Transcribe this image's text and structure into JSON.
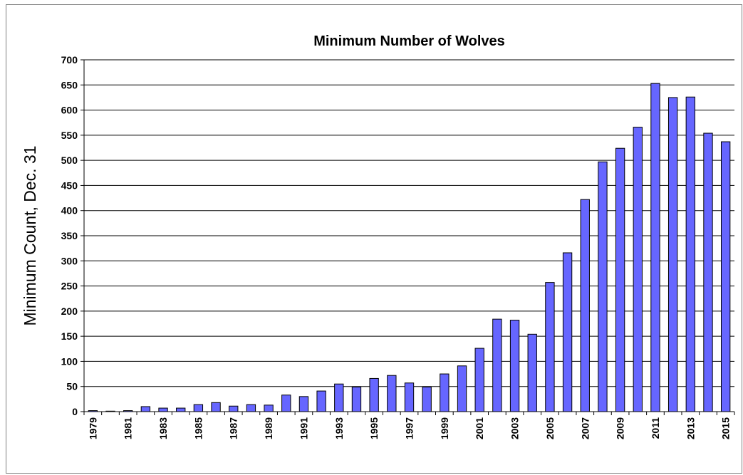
{
  "chart_data": {
    "type": "bar",
    "title": "Minimum Number of Wolves",
    "xlabel": "",
    "ylabel": "Minimum  Count, Dec.  31",
    "ylim": [
      0,
      700
    ],
    "ytick_step": 50,
    "yticks": [
      "0",
      "50",
      "100",
      "150",
      "200",
      "250",
      "300",
      "350",
      "400",
      "450",
      "500",
      "550",
      "600",
      "650",
      "700"
    ],
    "grid": true,
    "legend": "none",
    "bar_color": "#6666ff",
    "bar_edge_color": "#000000",
    "categories": [
      "1979",
      "1980",
      "1981",
      "1982",
      "1983",
      "1984",
      "1985",
      "1986",
      "1987",
      "1988",
      "1989",
      "1990",
      "1991",
      "1992",
      "1993",
      "1994",
      "1995",
      "1996",
      "1997",
      "1998",
      "1999",
      "2000",
      "2001",
      "2002",
      "2003",
      "2004",
      "2005",
      "2006",
      "2007",
      "2008",
      "2009",
      "2010",
      "2011",
      "2012",
      "2013",
      "2014",
      "2015"
    ],
    "tick_labels_shown": [
      "1979",
      "1981",
      "1983",
      "1985",
      "1987",
      "1989",
      "1991",
      "1993",
      "1995",
      "1997",
      "1999",
      "2001",
      "2003",
      "2005",
      "2007",
      "2009",
      "2011",
      "2013",
      "2015"
    ],
    "values": [
      2,
      1,
      2,
      10,
      7,
      7,
      14,
      18,
      11,
      14,
      13,
      33,
      30,
      41,
      55,
      49,
      66,
      72,
      57,
      49,
      75,
      91,
      126,
      184,
      182,
      154,
      257,
      316,
      422,
      497,
      524,
      566,
      653,
      625,
      626,
      554,
      537
    ]
  }
}
